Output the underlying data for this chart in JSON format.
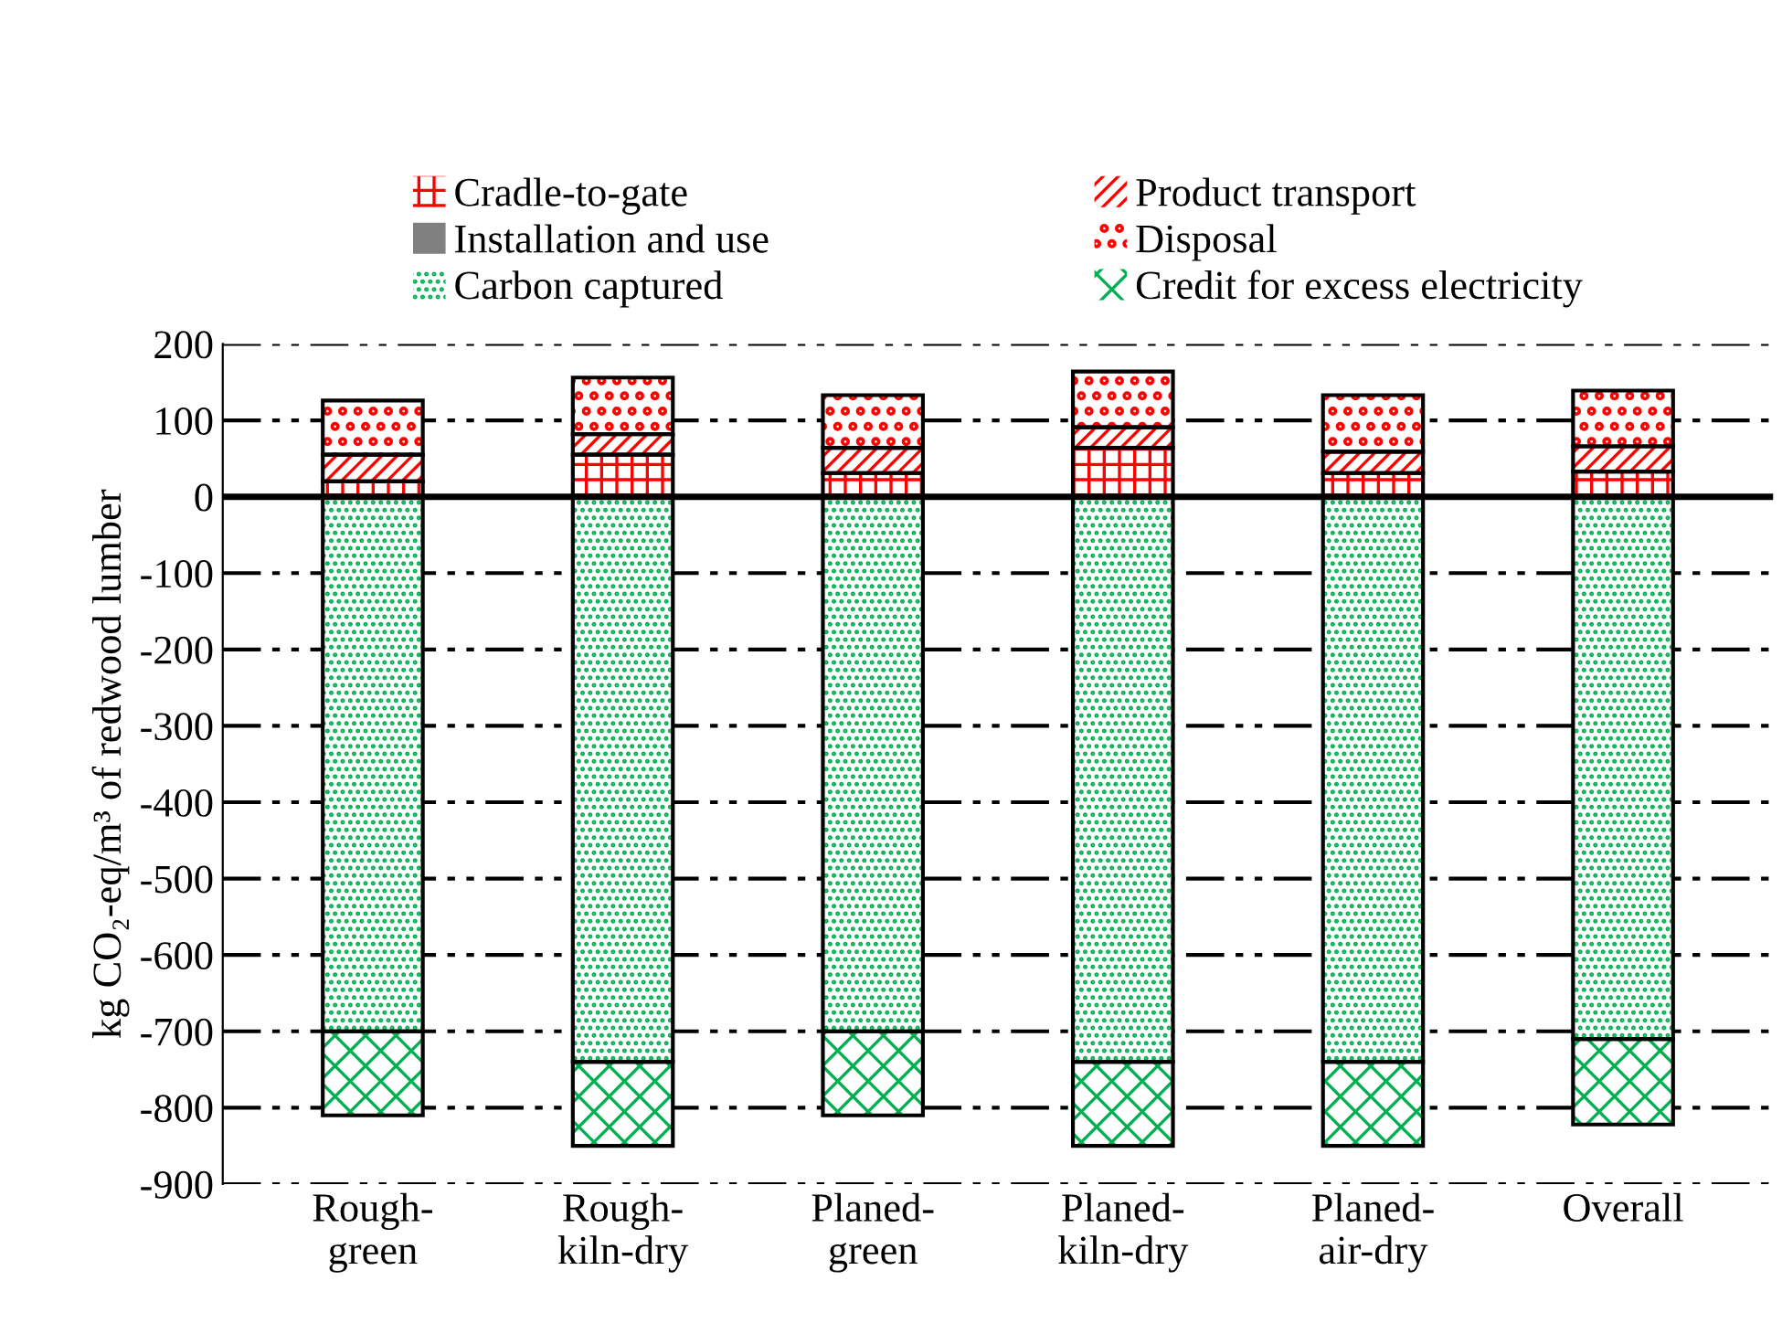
{
  "chart_data": {
    "type": "bar",
    "stacked": true,
    "ylabel": "kg CO₂-eq/m³ of redwood lumber",
    "categories": [
      "Rough-\ngreen",
      "Rough-\nkiln-dry",
      "Planed-\ngreen",
      "Planed-\nkiln-dry",
      "Planed-\nair-dry",
      "Overall"
    ],
    "series": [
      {
        "name": "Cradle-to-gate",
        "color": "#ff0000",
        "values": [
          20,
          55,
          31,
          64,
          31,
          33
        ]
      },
      {
        "name": "Product transport",
        "color": "#ff0000",
        "values": [
          35,
          27,
          33,
          27,
          28,
          33
        ]
      },
      {
        "name": "Installation and use",
        "color": "#808080",
        "values": [
          null,
          null,
          null,
          null,
          null,
          null
        ]
      },
      {
        "name": "Disposal",
        "color": "#ff0000",
        "values": [
          71,
          74,
          69,
          73,
          74,
          73
        ]
      },
      {
        "name": "Carbon captured",
        "color": "#00b050",
        "values": [
          -700,
          -740,
          -700,
          -740,
          -740,
          -710
        ]
      },
      {
        "name": "Credit for excess electricity",
        "color": "#00b050",
        "values": [
          -110,
          -110,
          -110,
          -110,
          -110,
          -112
        ]
      }
    ],
    "ylim": [
      -900,
      200
    ],
    "yticks": [
      -900,
      -800,
      -700,
      -600,
      -500,
      -400,
      -300,
      -200,
      -100,
      0,
      100,
      200
    ],
    "grid": "y",
    "legend": "top"
  }
}
